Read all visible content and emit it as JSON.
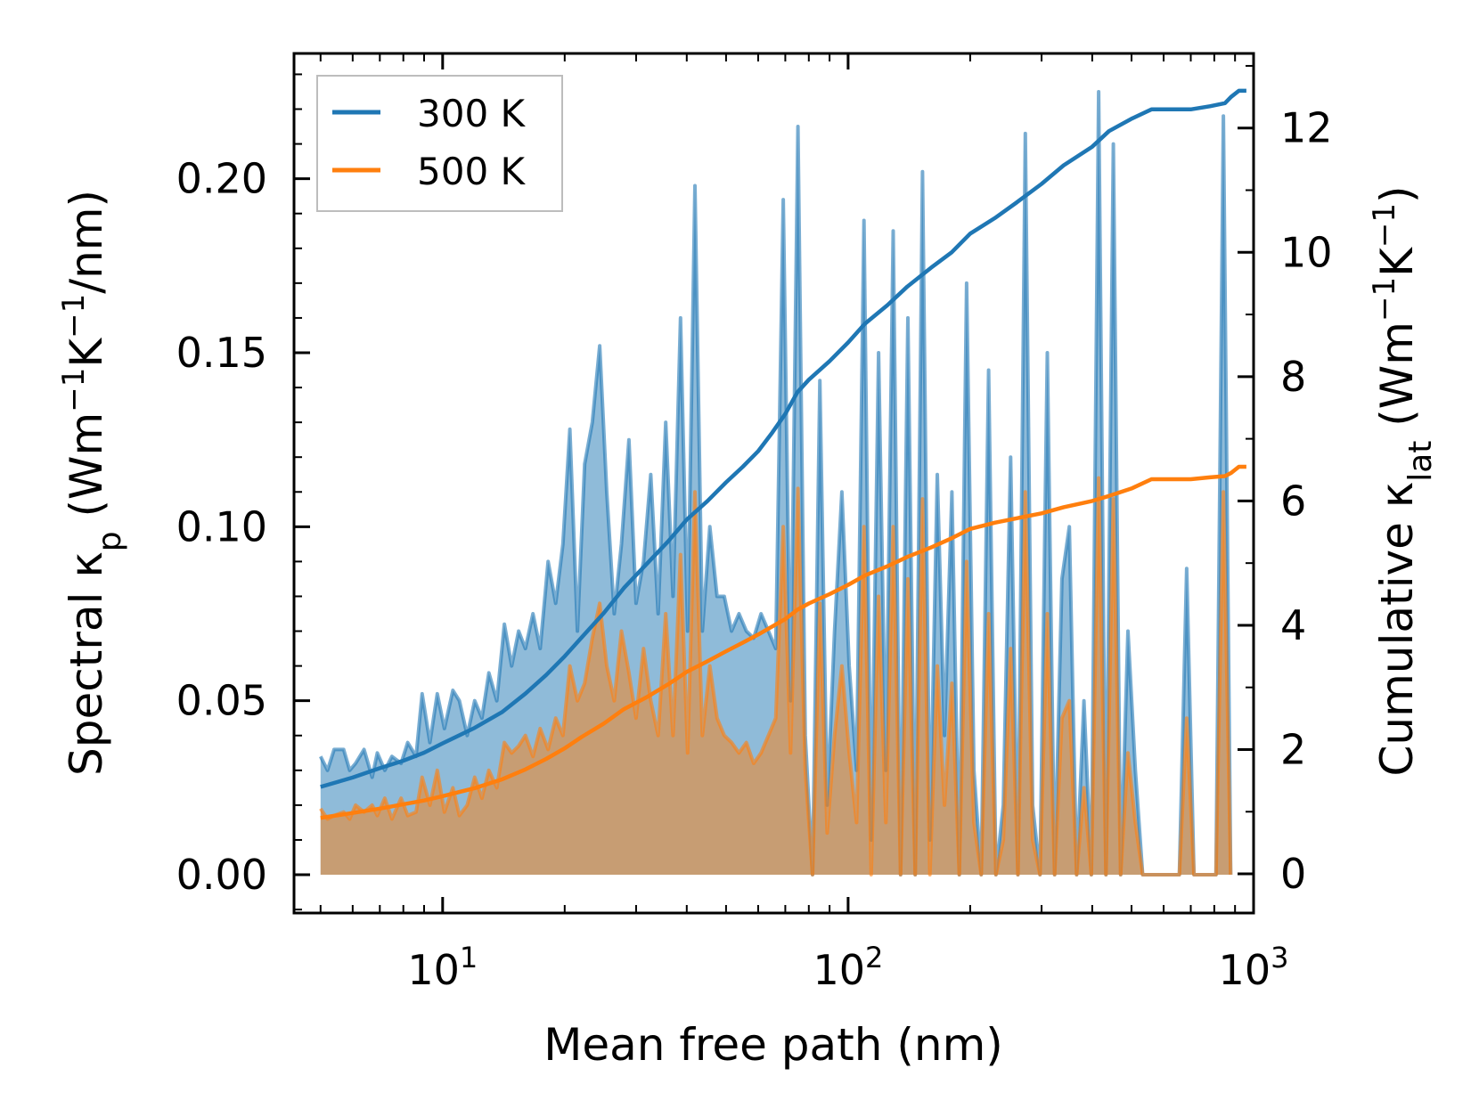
{
  "chart_data": {
    "type": "line",
    "title": "",
    "xlabel": "Mean free path (nm)",
    "ylabel_left": {
      "base": "Spectral κ",
      "sub": "p",
      "unit_pre": " (Wm",
      "sup1": "−1",
      "mid": "K",
      "sup2": "−1",
      "unit_post": "/nm)"
    },
    "ylabel_right": {
      "base": "Cumulative κ",
      "sub": "lat",
      "unit_pre": " (Wm",
      "sup1": "−1",
      "mid": "K",
      "sup2": "−1",
      "unit_post": ")"
    },
    "xscale": "log",
    "xlim": [
      4.3,
      1000
    ],
    "ylim_left": [
      -0.011,
      0.236
    ],
    "ylim_right": [
      -0.63,
      13.2
    ],
    "x_ticks": [
      {
        "base": "10",
        "exp": "1",
        "value": 10
      },
      {
        "base": "10",
        "exp": "2",
        "value": 100
      },
      {
        "base": "10",
        "exp": "3",
        "value": 1000
      }
    ],
    "y_ticks_left": [
      {
        "label": "0.00",
        "value": 0.0
      },
      {
        "label": "0.05",
        "value": 0.05
      },
      {
        "label": "0.10",
        "value": 0.1
      },
      {
        "label": "0.15",
        "value": 0.15
      },
      {
        "label": "0.20",
        "value": 0.2
      }
    ],
    "y_ticks_right": [
      {
        "label": "0",
        "value": 0
      },
      {
        "label": "2",
        "value": 2
      },
      {
        "label": "4",
        "value": 4
      },
      {
        "label": "6",
        "value": 6
      },
      {
        "label": "8",
        "value": 8
      },
      {
        "label": "10",
        "value": 10
      },
      {
        "label": "12",
        "value": 12
      }
    ],
    "legend": {
      "position": "top-left",
      "entries": [
        {
          "label": "300 K",
          "color": "#1f77b4"
        },
        {
          "label": "500 K",
          "color": "#ff7f0e"
        }
      ]
    },
    "spectral_x": [
      5.0,
      5.2,
      5.4,
      5.7,
      5.9,
      6.1,
      6.4,
      6.7,
      6.9,
      7.2,
      7.5,
      7.9,
      8.2,
      8.6,
      8.9,
      9.3,
      9.7,
      10.1,
      10.6,
      11.0,
      11.5,
      12.0,
      12.5,
      13.0,
      13.6,
      14.2,
      14.8,
      15.4,
      16.0,
      16.7,
      17.4,
      18.2,
      19.0,
      19.8,
      20.6,
      21.5,
      22.4,
      23.4,
      24.4,
      25.4,
      26.5,
      27.6,
      28.8,
      30.0,
      31.3,
      32.6,
      34.0,
      35.5,
      37.0,
      38.6,
      40.2,
      41.9,
      43.7,
      45.6,
      47.5,
      49.5,
      51.6,
      53.8,
      56.1,
      58.5,
      61.0,
      63.6,
      66.3,
      69.2,
      72.1,
      75.2,
      78.4,
      81.7,
      85.2,
      88.8,
      92.6,
      96.5,
      100.6,
      104.9,
      109.4,
      114.0,
      118.9,
      123.9,
      129.2,
      134.7,
      140.4,
      146.4,
      152.6,
      159.1,
      165.9,
      172.9,
      180.3,
      188.0,
      196.0,
      204.3,
      213.0,
      222.1,
      231.5,
      241.4,
      251.6,
      262.3,
      273.5,
      285.1,
      297.3,
      309.9,
      323.1,
      336.8,
      351.2,
      366.1,
      381.7,
      397.9,
      414.8,
      432.5,
      450.9,
      470.1,
      490.1,
      510.9,
      532.6,
      555.3,
      578.9,
      603.6,
      629.2,
      656.0,
      683.9,
      713.0,
      743.3,
      775.0,
      807.9,
      842.3,
      878.1,
      915.5,
      954.4
    ],
    "series": [
      {
        "name": "300 K",
        "color": "#1f77b4",
        "spectral": [
          0.034,
          0.03,
          0.036,
          0.036,
          0.03,
          0.032,
          0.036,
          0.028,
          0.035,
          0.03,
          0.034,
          0.032,
          0.038,
          0.034,
          0.052,
          0.038,
          0.052,
          0.042,
          0.053,
          0.05,
          0.04,
          0.05,
          0.045,
          0.058,
          0.05,
          0.072,
          0.06,
          0.07,
          0.065,
          0.075,
          0.065,
          0.09,
          0.078,
          0.095,
          0.128,
          0.07,
          0.118,
          0.13,
          0.152,
          0.11,
          0.075,
          0.095,
          0.125,
          0.078,
          0.09,
          0.115,
          0.075,
          0.13,
          0.08,
          0.16,
          0.07,
          0.198,
          0.07,
          0.1,
          0.08,
          0.08,
          0.07,
          0.075,
          0.07,
          0.068,
          0.075,
          0.07,
          0.065,
          0.194,
          0.05,
          0.215,
          0.04,
          0.0,
          0.142,
          0.02,
          0.07,
          0.11,
          0.06,
          0.03,
          0.188,
          0.01,
          0.15,
          0.03,
          0.185,
          0.0,
          0.16,
          0.0,
          0.202,
          0.01,
          0.115,
          0.04,
          0.11,
          0.0,
          0.17,
          0.03,
          0.0,
          0.145,
          0.0,
          0.02,
          0.12,
          0.0,
          0.213,
          0.02,
          0.0,
          0.15,
          0.0,
          0.085,
          0.1,
          0.0,
          0.05,
          0.0,
          0.225,
          0.0,
          0.21,
          0.0,
          0.07,
          0.03,
          0.0,
          0.0,
          0.0,
          0.0,
          0.0,
          0.0,
          0.088,
          0.0,
          0.0,
          0.0,
          0.0,
          0.218,
          0.0
        ],
        "cumulative_x": [
          5.0,
          6.0,
          7.0,
          8.0,
          9.0,
          10.0,
          12.0,
          14.0,
          16.0,
          18.0,
          20.0,
          22.0,
          25.0,
          28.0,
          32.0,
          36.0,
          40.0,
          45.0,
          50.0,
          55.0,
          60.0,
          65.0,
          70.0,
          75.0,
          80.0,
          90.0,
          100.0,
          110.0,
          125.0,
          140.0,
          160.0,
          180.0,
          200.0,
          230.0,
          260.0,
          300.0,
          340.0,
          400.0,
          440.0,
          500.0,
          560.0,
          620.0,
          700.0,
          780.0,
          850.0,
          880.0,
          920.0,
          960.0
        ],
        "cumulative": [
          1.4,
          1.55,
          1.7,
          1.82,
          1.95,
          2.1,
          2.35,
          2.6,
          2.9,
          3.2,
          3.5,
          3.8,
          4.2,
          4.6,
          5.0,
          5.35,
          5.7,
          6.0,
          6.3,
          6.55,
          6.8,
          7.1,
          7.4,
          7.75,
          7.95,
          8.25,
          8.55,
          8.85,
          9.15,
          9.45,
          9.75,
          10.0,
          10.3,
          10.55,
          10.8,
          11.1,
          11.4,
          11.7,
          11.95,
          12.15,
          12.3,
          12.3,
          12.3,
          12.35,
          12.4,
          12.5,
          12.6,
          12.6
        ]
      },
      {
        "name": "500 K",
        "color": "#ff7f0e",
        "spectral": [
          0.019,
          0.016,
          0.017,
          0.018,
          0.016,
          0.02,
          0.018,
          0.02,
          0.017,
          0.022,
          0.016,
          0.022,
          0.017,
          0.018,
          0.028,
          0.02,
          0.03,
          0.018,
          0.025,
          0.017,
          0.02,
          0.028,
          0.022,
          0.03,
          0.025,
          0.038,
          0.035,
          0.037,
          0.04,
          0.034,
          0.042,
          0.036,
          0.045,
          0.04,
          0.06,
          0.05,
          0.055,
          0.068,
          0.078,
          0.06,
          0.05,
          0.07,
          0.058,
          0.045,
          0.065,
          0.05,
          0.04,
          0.075,
          0.04,
          0.092,
          0.035,
          0.11,
          0.04,
          0.06,
          0.045,
          0.04,
          0.038,
          0.035,
          0.038,
          0.032,
          0.035,
          0.04,
          0.045,
          0.1,
          0.035,
          0.111,
          0.03,
          0.0,
          0.078,
          0.012,
          0.04,
          0.06,
          0.035,
          0.015,
          0.1,
          0.0,
          0.08,
          0.015,
          0.1,
          0.0,
          0.085,
          0.0,
          0.108,
          0.0,
          0.06,
          0.02,
          0.055,
          0.0,
          0.09,
          0.015,
          0.0,
          0.075,
          0.0,
          0.01,
          0.065,
          0.0,
          0.11,
          0.01,
          0.0,
          0.075,
          0.0,
          0.045,
          0.05,
          0.0,
          0.025,
          0.0,
          0.114,
          0.0,
          0.108,
          0.0,
          0.035,
          0.015,
          0.0,
          0.0,
          0.0,
          0.0,
          0.0,
          0.0,
          0.045,
          0.0,
          0.0,
          0.0,
          0.0,
          0.11,
          0.0
        ],
        "cumulative_x": [
          5.0,
          6.0,
          7.0,
          8.0,
          9.0,
          10.0,
          12.0,
          14.0,
          16.0,
          18.0,
          20.0,
          22.0,
          25.0,
          28.0,
          32.0,
          36.0,
          40.0,
          45.0,
          50.0,
          55.0,
          60.0,
          65.0,
          70.0,
          75.0,
          80.0,
          90.0,
          100.0,
          110.0,
          125.0,
          140.0,
          160.0,
          180.0,
          200.0,
          230.0,
          260.0,
          300.0,
          340.0,
          400.0,
          440.0,
          500.0,
          560.0,
          620.0,
          700.0,
          780.0,
          850.0,
          880.0,
          920.0,
          960.0
        ],
        "cumulative": [
          0.9,
          0.98,
          1.05,
          1.12,
          1.18,
          1.25,
          1.38,
          1.52,
          1.68,
          1.85,
          2.02,
          2.2,
          2.42,
          2.65,
          2.85,
          3.05,
          3.25,
          3.42,
          3.58,
          3.72,
          3.85,
          3.98,
          4.1,
          4.25,
          4.35,
          4.5,
          4.65,
          4.8,
          4.95,
          5.1,
          5.25,
          5.4,
          5.55,
          5.65,
          5.72,
          5.8,
          5.9,
          6.0,
          6.08,
          6.2,
          6.35,
          6.35,
          6.35,
          6.38,
          6.4,
          6.45,
          6.55,
          6.55
        ]
      }
    ]
  }
}
